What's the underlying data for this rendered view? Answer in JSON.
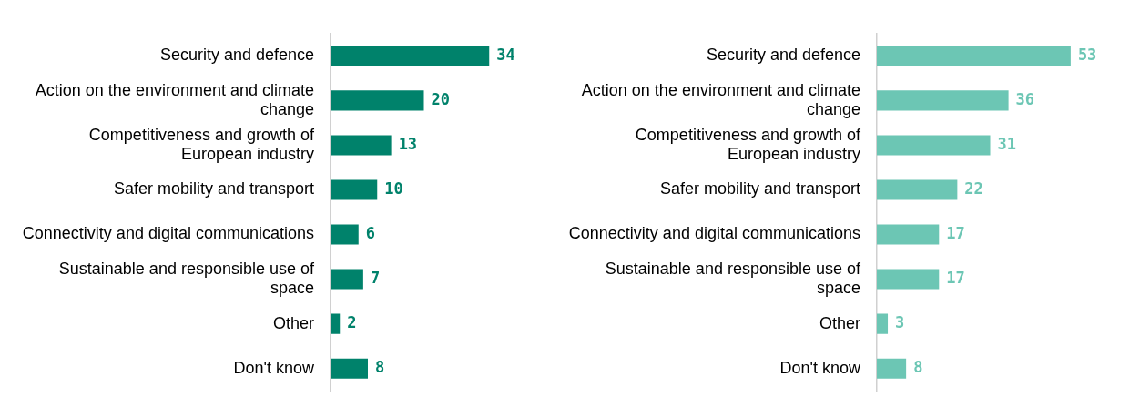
{
  "chart_data": [
    {
      "type": "bar",
      "orientation": "horizontal",
      "categories": [
        "Security and defence",
        "Action on the environment and climate change",
        "Competitiveness and growth of European industry",
        "Safer mobility and transport",
        "Connectivity and digital communications",
        "Sustainable and responsible use of space",
        "Other",
        "Don't know"
      ],
      "values": [
        34,
        20,
        13,
        10,
        6,
        7,
        2,
        8
      ],
      "color": "#00826b",
      "data_labels": true,
      "tick_labels": "y"
    },
    {
      "type": "bar",
      "orientation": "horizontal",
      "categories": [
        "Security and defence",
        "Action on the environment and climate change",
        "Competitiveness and growth of European industry",
        "Safer mobility and transport",
        "Connectivity and digital communications",
        "Sustainable and responsible use of space",
        "Other",
        "Don't know"
      ],
      "values": [
        53,
        36,
        31,
        22,
        17,
        17,
        3,
        8
      ],
      "color": "#6cc6b4",
      "data_labels": true,
      "tick_labels": "y"
    }
  ]
}
